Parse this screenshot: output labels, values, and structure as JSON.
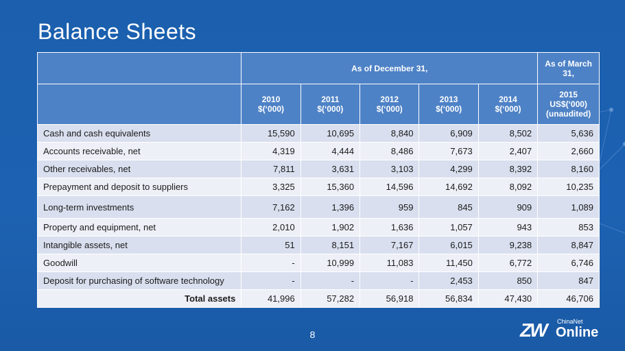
{
  "slide": {
    "title": "Balance Sheets",
    "page_number": "8",
    "logo_small": "ChinaNet",
    "logo_big": "Online",
    "logo_mark": "ZW"
  },
  "table": {
    "group_header_1": "As of December 31,",
    "group_header_2": "As of March 31,",
    "columns": [
      {
        "year": "2010",
        "unit": "$(‘000)"
      },
      {
        "year": "2011",
        "unit": "$(‘000)"
      },
      {
        "year": "2012",
        "unit": "$(‘000)"
      },
      {
        "year": "2013",
        "unit": "$(‘000)"
      },
      {
        "year": "2014",
        "unit": "$(‘000)"
      },
      {
        "year": "2015",
        "unit": "US$(‘000)",
        "note": "(unaudited)"
      }
    ],
    "rows": [
      {
        "label": "Cash and cash equivalents",
        "values": [
          "15,590",
          "10,695",
          "8,840",
          "6,909",
          "8,502",
          "5,636"
        ]
      },
      {
        "label": "Accounts receivable, net",
        "values": [
          "4,319",
          "4,444",
          "8,486",
          "7,673",
          "2,407",
          "2,660"
        ]
      },
      {
        "label": "Other receivables, net",
        "values": [
          "7,811",
          "3,631",
          "3,103",
          "4,299",
          "8,392",
          "8,160"
        ]
      },
      {
        "label": "Prepayment and deposit to suppliers",
        "values": [
          "3,325",
          "15,360",
          "14,596",
          "14,692",
          "8,092",
          "10,235"
        ]
      },
      {
        "label": "Long-term investments",
        "values": [
          "7,162",
          "1,396",
          "959",
          "845",
          "909",
          "1,089"
        ]
      },
      {
        "label": "Property and equipment, net",
        "values": [
          "2,010",
          "1,902",
          "1,636",
          "1,057",
          "943",
          "853"
        ]
      },
      {
        "label": "Intangible assets, net",
        "values": [
          "51",
          "8,151",
          "7,167",
          "6,015",
          "9,238",
          "8,847"
        ]
      },
      {
        "label": "Goodwill",
        "values": [
          "-",
          "10,999",
          "11,083",
          "11,450",
          "6,772",
          "6,746"
        ]
      },
      {
        "label": "Deposit for purchasing of software technology",
        "values": [
          "-",
          "-",
          "-",
          "2,453",
          "850",
          "847"
        ]
      },
      {
        "label": "Total assets",
        "values": [
          "41,996",
          "57,282",
          "56,918",
          "56,834",
          "47,430",
          "46,706"
        ]
      }
    ]
  }
}
